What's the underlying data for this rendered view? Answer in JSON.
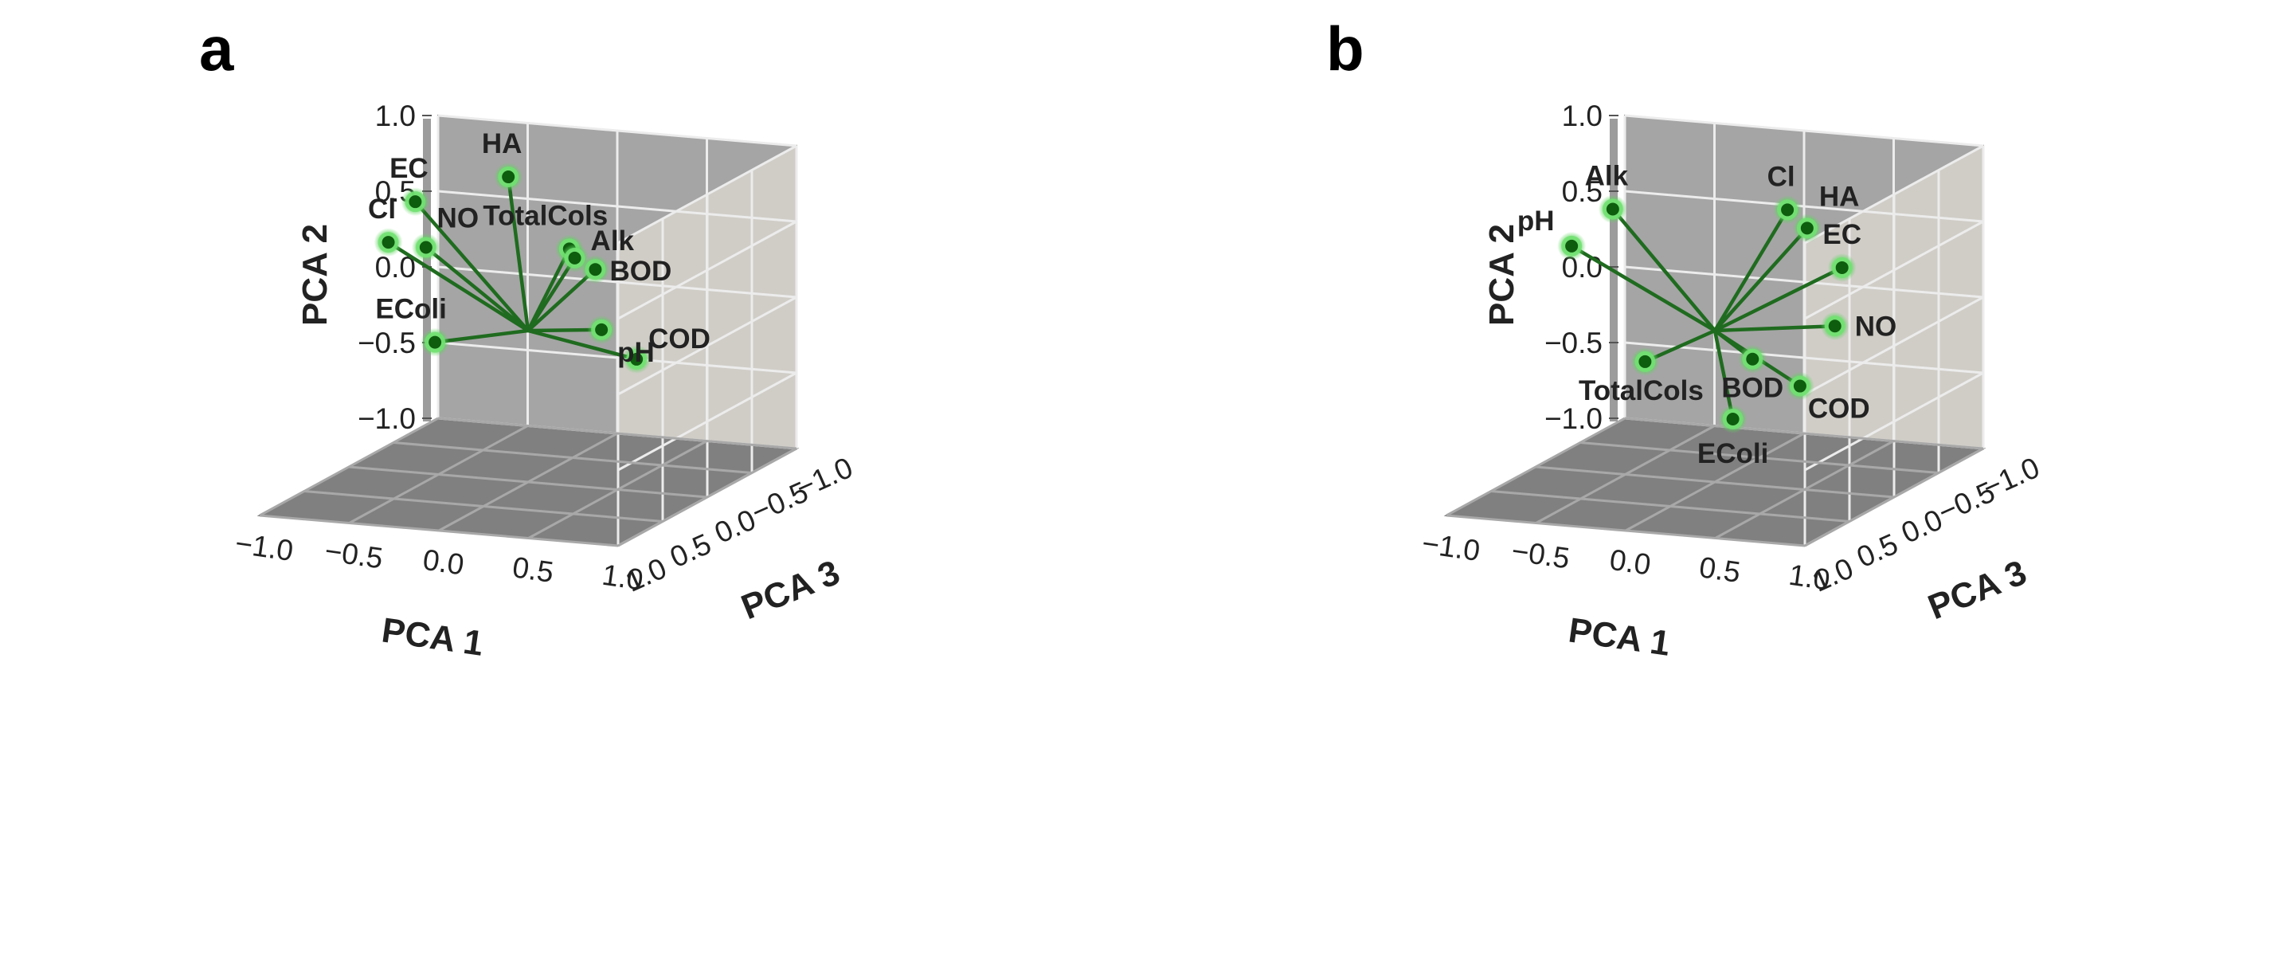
{
  "chart_data": [
    {
      "panel": "a",
      "type": "scatter",
      "xlabel": "PCA 1",
      "ylabel": "PCA 2",
      "zlabel": "PCA 3",
      "x_ticks": [
        "−1.0",
        "−0.5",
        "0.0",
        "0.5",
        "1.0"
      ],
      "y_ticks": [
        "1.0",
        "0.5",
        "0.0",
        "−0.5",
        "−1.0"
      ],
      "z_ticks": [
        "1.0",
        "0.5",
        "0.0",
        "−0.5",
        "−1.0"
      ],
      "xlim": [
        -1,
        1
      ],
      "ylim": [
        -1,
        1
      ],
      "zlim": [
        -1,
        1
      ],
      "grid": true,
      "points": [
        {
          "label": "HA",
          "x": -0.17,
          "y": 0.96,
          "z": -0.12
        },
        {
          "label": "EC",
          "x": -0.48,
          "y": 0.9,
          "z": 0.3
        },
        {
          "label": "Cl",
          "x": -0.72,
          "y": 0.55,
          "z": 0.12
        },
        {
          "label": "NO",
          "x": -0.52,
          "y": 0.53,
          "z": 0.1
        },
        {
          "label": "TotalCols",
          "x": 0.28,
          "y": 0.6,
          "z": 0.1
        },
        {
          "label": "Alk",
          "x": 0.32,
          "y": 0.55,
          "z": 0.12
        },
        {
          "label": "BOD",
          "x": 0.44,
          "y": 0.49,
          "z": 0.13
        },
        {
          "label": "EColi",
          "x": -0.4,
          "y": -0.04,
          "z": 0.24
        },
        {
          "label": "pH",
          "x": 0.32,
          "y": -0.02,
          "z": -0.18
        },
        {
          "label": "COD",
          "x": 0.63,
          "y": -0.11,
          "z": 0.05
        }
      ]
    },
    {
      "panel": "b",
      "type": "scatter",
      "xlabel": "PCA 1",
      "ylabel": "PCA 2",
      "zlabel": "PCA 3",
      "x_ticks": [
        "−1.0",
        "−0.5",
        "0.0",
        "0.5",
        "1.0"
      ],
      "y_ticks": [
        "1.0",
        "0.5",
        "0.0",
        "−0.5",
        "−1.0"
      ],
      "z_ticks": [
        "1.0",
        "0.5",
        "0.0",
        "−0.5",
        "−1.0"
      ],
      "xlim": [
        -1,
        1
      ],
      "ylim": [
        -1,
        1
      ],
      "zlim": [
        -1,
        1
      ],
      "grid": true,
      "points": [
        {
          "label": "Alk",
          "x": -0.47,
          "y": 0.82,
          "z": 0.2
        },
        {
          "label": "pH",
          "x": -0.65,
          "y": 0.59,
          "z": 0.3
        },
        {
          "label": "Cl",
          "x": 0.38,
          "y": 0.82,
          "z": -0.05
        },
        {
          "label": "HA",
          "x": 0.49,
          "y": 0.71,
          "z": -0.05
        },
        {
          "label": "EC",
          "x": 0.66,
          "y": 0.45,
          "z": -0.1
        },
        {
          "label": "NO",
          "x": 0.62,
          "y": 0.06,
          "z": -0.1
        },
        {
          "label": "TotalCols",
          "x": -0.25,
          "y": -0.14,
          "z": 0.28
        },
        {
          "label": "BOD",
          "x": 0.26,
          "y": -0.13,
          "z": 0.1
        },
        {
          "label": "COD",
          "x": 0.5,
          "y": -0.3,
          "z": 0.05
        },
        {
          "label": "EColi",
          "x": 0.2,
          "y": -0.5,
          "z": 0.2
        }
      ]
    }
  ],
  "colors": {
    "back_wall": "#a5a5a5",
    "side_wall": "#d0cdc7",
    "floor": "#808080",
    "grid_line": "#ececec",
    "vector_line": "#1f6b1f",
    "marker_fill": "#0e5c0e",
    "marker_glow": "#72e272"
  }
}
